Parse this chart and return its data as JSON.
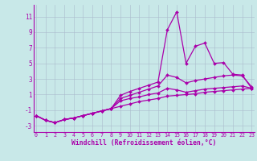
{
  "xlabel": "Windchill (Refroidissement éolien,°C)",
  "x_ticks": [
    0,
    1,
    2,
    3,
    4,
    5,
    6,
    7,
    8,
    9,
    10,
    11,
    12,
    13,
    14,
    15,
    16,
    17,
    18,
    19,
    20,
    21,
    22,
    23
  ],
  "ylim": [
    -3.8,
    12.5
  ],
  "xlim": [
    -0.3,
    23.3
  ],
  "yticks": [
    -3,
    -1,
    1,
    3,
    5,
    7,
    9,
    11
  ],
  "background_color": "#c8e8e8",
  "line_color": "#aa00aa",
  "grid_color": "#aabbcc",
  "lines": [
    {
      "x": [
        0,
        1,
        2,
        3,
        4,
        5,
        6,
        7,
        8,
        9,
        10,
        11,
        12,
        13,
        14,
        15,
        16,
        17,
        18,
        19,
        20,
        21,
        22,
        23
      ],
      "y": [
        -1.7,
        -2.3,
        -2.6,
        -2.2,
        -2.0,
        -1.7,
        -1.4,
        -1.1,
        -0.8,
        0.9,
        1.4,
        1.8,
        2.2,
        2.6,
        9.3,
        11.6,
        5.0,
        7.2,
        7.6,
        5.0,
        5.1,
        3.6,
        3.5,
        1.8
      ]
    },
    {
      "x": [
        0,
        1,
        2,
        3,
        4,
        5,
        6,
        7,
        8,
        9,
        10,
        11,
        12,
        13,
        14,
        15,
        16,
        17,
        18,
        19,
        20,
        21,
        22,
        23
      ],
      "y": [
        -1.7,
        -2.3,
        -2.6,
        -2.2,
        -2.0,
        -1.7,
        -1.4,
        -1.1,
        -0.8,
        0.5,
        0.9,
        1.3,
        1.7,
        2.1,
        3.5,
        3.2,
        2.5,
        2.8,
        3.0,
        3.2,
        3.4,
        3.5,
        3.4,
        2.0
      ]
    },
    {
      "x": [
        0,
        1,
        2,
        3,
        4,
        5,
        6,
        7,
        8,
        9,
        10,
        11,
        12,
        13,
        14,
        15,
        16,
        17,
        18,
        19,
        20,
        21,
        22,
        23
      ],
      "y": [
        -1.7,
        -2.3,
        -2.6,
        -2.2,
        -2.0,
        -1.7,
        -1.4,
        -1.1,
        -0.8,
        0.2,
        0.5,
        0.7,
        1.0,
        1.2,
        1.8,
        1.6,
        1.3,
        1.5,
        1.7,
        1.8,
        1.9,
        2.0,
        2.1,
        1.8
      ]
    },
    {
      "x": [
        0,
        1,
        2,
        3,
        4,
        5,
        6,
        7,
        8,
        9,
        10,
        11,
        12,
        13,
        14,
        15,
        16,
        17,
        18,
        19,
        20,
        21,
        22,
        23
      ],
      "y": [
        -1.7,
        -2.3,
        -2.6,
        -2.2,
        -2.0,
        -1.7,
        -1.4,
        -1.1,
        -0.8,
        -0.5,
        -0.2,
        0.1,
        0.3,
        0.5,
        0.8,
        0.9,
        1.0,
        1.1,
        1.3,
        1.4,
        1.5,
        1.6,
        1.7,
        1.8
      ]
    }
  ]
}
